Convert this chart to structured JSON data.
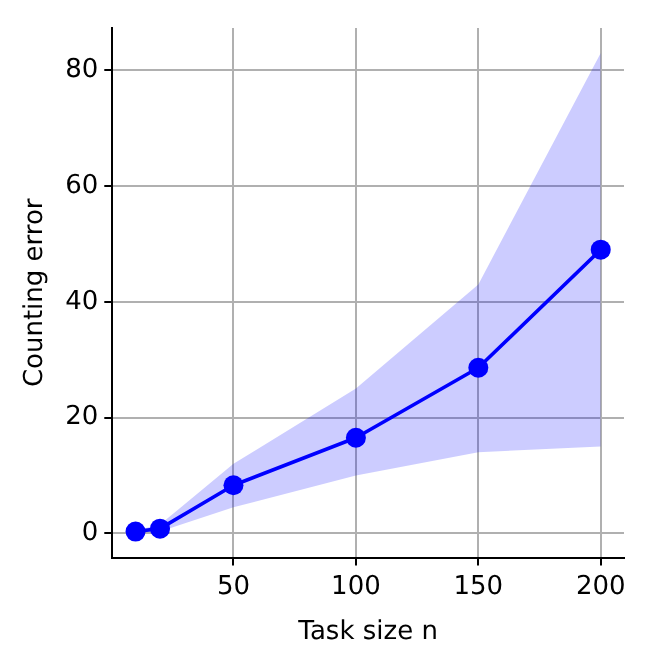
{
  "chart_data": {
    "type": "line",
    "xlabel": "Task size n",
    "ylabel": "Counting error",
    "x": [
      10,
      20,
      50,
      100,
      150,
      200
    ],
    "series": [
      {
        "color": "#0000ff",
        "values": [
          0.3,
          0.8,
          8.3,
          16.5,
          28.6,
          49
        ],
        "lower": [
          0.1,
          0.3,
          4.5,
          10,
          14,
          15
        ],
        "upper": [
          0.5,
          1.5,
          12,
          25,
          43,
          83
        ]
      }
    ],
    "xlim": [
      0.5,
      209.5
    ],
    "ylim": [
      -4.2,
      87.3
    ],
    "xticks": [
      50,
      100,
      150,
      200
    ],
    "yticks": [
      0,
      20,
      40,
      60,
      80
    ],
    "grid": true,
    "marker": "circle",
    "line_style": "solid",
    "legend": false
  }
}
